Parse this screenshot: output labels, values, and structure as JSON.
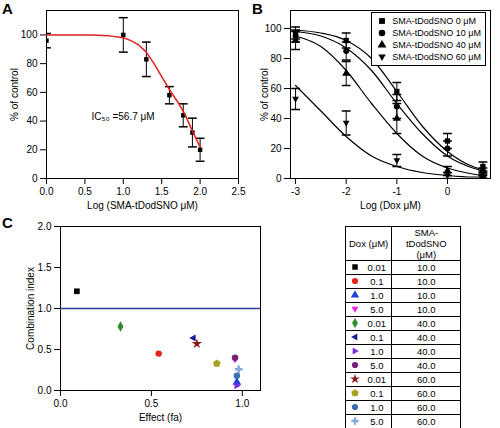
{
  "chart_data": [
    {
      "title": "A",
      "type": "scatter",
      "x_label": "Log (SMA-tDodSNO μM)",
      "y_label": "% of control",
      "xlim": [
        0,
        2.5
      ],
      "xticks": [
        {
          "value": 0,
          "label": "0.0"
        },
        {
          "value": 0.5,
          "label": "0.5"
        },
        {
          "value": 1,
          "label": "1.0"
        },
        {
          "value": 1.5,
          "label": "1.5"
        },
        {
          "value": 2,
          "label": "2.0"
        },
        {
          "value": 2.5,
          "label": "2.5"
        }
      ],
      "ylim": [
        0,
        117
      ],
      "yticks": [
        0,
        20,
        40,
        60,
        80,
        100
      ],
      "annotations": [
        "IC₅₀ =56.7 μM"
      ],
      "series": [
        {
          "type": "scatter",
          "marker": "square",
          "color": "#000000",
          "x": [
            0,
            1,
            1.3,
            1.6,
            1.78,
            1.9,
            2.0
          ],
          "values": [
            96,
            100,
            83,
            58,
            44,
            32,
            20
          ],
          "errors": [
            5,
            12,
            12,
            6,
            8,
            10,
            8
          ]
        },
        {
          "type": "line",
          "color": "#e02020",
          "x": [
            0,
            0.2,
            0.4,
            0.6,
            0.8,
            1.0,
            1.1,
            1.2,
            1.3,
            1.4,
            1.5,
            1.6,
            1.7,
            1.8,
            1.9,
            2.0
          ],
          "values": [
            100,
            100,
            100,
            99.9,
            99.5,
            98,
            96,
            93,
            88,
            80,
            71,
            62,
            54,
            45,
            33,
            22
          ]
        }
      ]
    },
    {
      "title": "B",
      "type": "scatter",
      "x_label": "Log (Dox μM)",
      "y_label": "% of control",
      "xlim": [
        -3.1,
        0.85
      ],
      "xticks": [
        -3,
        -2,
        -1,
        0
      ],
      "ylim": [
        0,
        112
      ],
      "yticks": [
        0,
        20,
        40,
        60,
        80,
        100
      ],
      "legend": "top-right",
      "series": [
        {
          "name": "SMA-tDodSNO 0 μM",
          "marker": "square",
          "color": "#000000",
          "x": [
            -3,
            -2,
            -1,
            0,
            0.7
          ],
          "values": [
            97,
            92,
            58,
            25,
            8
          ],
          "errors": [
            4,
            5,
            6,
            5,
            3
          ],
          "fit_x": [
            -3,
            -2.5,
            -2,
            -1.5,
            -1,
            -0.5,
            0,
            0.5,
            0.7
          ],
          "fit_values": [
            99,
            97,
            92,
            80,
            58,
            35,
            18,
            8,
            6
          ]
        },
        {
          "name": "SMA-tDodSNO 10 μM",
          "marker": "circle",
          "color": "#000000",
          "x": [
            -3,
            -2,
            -1,
            0,
            0.7
          ],
          "values": [
            95,
            85,
            48,
            20,
            5
          ],
          "errors": [
            4,
            6,
            8,
            5,
            2
          ],
          "fit_x": [
            -3,
            -2.5,
            -2,
            -1.5,
            -1,
            -0.5,
            0,
            0.5,
            0.7
          ],
          "fit_values": [
            98,
            95,
            87,
            72,
            50,
            30,
            15,
            7,
            5
          ]
        },
        {
          "name": "SMA-tDodSNO 40 μM",
          "marker": "triangle",
          "color": "#000000",
          "x": [
            -3,
            -2,
            -1,
            0,
            0.7
          ],
          "values": [
            92,
            70,
            40,
            5,
            2
          ],
          "errors": [
            6,
            8,
            10,
            3,
            2
          ],
          "fit_x": [
            -3,
            -2.5,
            -2,
            -1.5,
            -1,
            -0.5,
            0,
            0.5,
            0.7
          ],
          "fit_values": [
            95,
            88,
            72,
            50,
            30,
            15,
            7,
            3,
            2
          ]
        },
        {
          "name": "SMA-tDodSNO 60 μM",
          "marker": "triangle-down",
          "color": "#000000",
          "x": [
            -3,
            -2,
            -1,
            0,
            0.7
          ],
          "values": [
            53,
            37,
            12,
            2,
            1
          ],
          "errors": [
            7,
            8,
            4,
            2,
            1
          ],
          "fit_x": [
            -3,
            -2.5,
            -2,
            -1.5,
            -1,
            -0.5,
            0,
            0.5,
            0.7
          ],
          "fit_values": [
            62,
            45,
            28,
            15,
            8,
            4,
            2,
            1,
            1
          ]
        }
      ]
    },
    {
      "title": "C",
      "type": "scatter",
      "x_label": "Effect (fa)",
      "y_label": "Combination index",
      "xlim": [
        0,
        1.1
      ],
      "xticks": [
        {
          "value": 0,
          "label": "0.0"
        },
        {
          "value": 0.5,
          "label": "0.5"
        },
        {
          "value": 1,
          "label": "1.0"
        }
      ],
      "ylim": [
        0,
        2.0
      ],
      "yticks": [
        {
          "value": 0,
          "label": "0.0"
        },
        {
          "value": 0.5,
          "label": "0.5"
        },
        {
          "value": 1,
          "label": "1.0"
        },
        {
          "value": 1.5,
          "label": "1.5"
        },
        {
          "value": 2,
          "label": "2.0"
        }
      ],
      "reference_line": {
        "y": 1.0,
        "color": "#2a3f9f"
      },
      "legend": "right",
      "table_headers": [
        "Dox (μM)",
        "SMA-tDodSNO (μM)"
      ],
      "points": [
        {
          "x": 0.09,
          "y": 1.21,
          "marker": "square",
          "color": "#000000",
          "dox": 0.01,
          "dox_label": "0.01",
          "sma": 10,
          "sma_label": "10.0"
        },
        {
          "x": 0.54,
          "y": 0.45,
          "marker": "circle",
          "color": "#e8231c",
          "dox": 0.1,
          "dox_label": "0.1",
          "sma": 10,
          "sma_label": "10.0"
        },
        {
          "x": 0.97,
          "y": 0.1,
          "marker": "triangle",
          "color": "#1f3fd6",
          "dox": 1.0,
          "dox_label": "1.0",
          "sma": 10,
          "sma_label": "10.0"
        },
        {
          "x": 0.96,
          "y": 0.38,
          "marker": "triangle-down",
          "color": "#e81ee8",
          "dox": 5.0,
          "dox_label": "5.0",
          "sma": 10,
          "sma_label": "10.0"
        },
        {
          "x": 0.33,
          "y": 0.78,
          "marker": "diamond",
          "color": "#2e8b2e",
          "dox": 0.01,
          "dox_label": "0.01",
          "sma": 40,
          "sma_label": "40.0"
        },
        {
          "x": 0.73,
          "y": 0.64,
          "marker": "triangle-left",
          "color": "#1a1a9a",
          "dox": 0.1,
          "dox_label": "0.1",
          "sma": 40,
          "sma_label": "40.0"
        },
        {
          "x": 0.97,
          "y": 0.06,
          "marker": "triangle-right",
          "color": "#7b2ee0",
          "dox": 1.0,
          "dox_label": "1.0",
          "sma": 40,
          "sma_label": "40.0"
        },
        {
          "x": 0.96,
          "y": 0.4,
          "marker": "circle",
          "color": "#7a1f7a",
          "dox": 5.0,
          "dox_label": "5.0",
          "sma": 40,
          "sma_label": "40.0"
        },
        {
          "x": 0.75,
          "y": 0.57,
          "marker": "star",
          "color": "#8b1a1a",
          "dox": 0.01,
          "dox_label": "0.01",
          "sma": 60,
          "sma_label": "60.0"
        },
        {
          "x": 0.86,
          "y": 0.33,
          "marker": "pentagon",
          "color": "#a8a020",
          "dox": 0.1,
          "dox_label": "0.1",
          "sma": 60,
          "sma_label": "60.0"
        },
        {
          "x": 0.97,
          "y": 0.18,
          "marker": "circle",
          "color": "#3a6fb0",
          "dox": 1.0,
          "dox_label": "1.0",
          "sma": 60,
          "sma_label": "60.0"
        },
        {
          "x": 0.98,
          "y": 0.26,
          "marker": "plus",
          "color": "#8aa8d8",
          "dox": 5.0,
          "dox_label": "5.0",
          "sma": 60,
          "sma_label": "60.0"
        }
      ]
    }
  ]
}
